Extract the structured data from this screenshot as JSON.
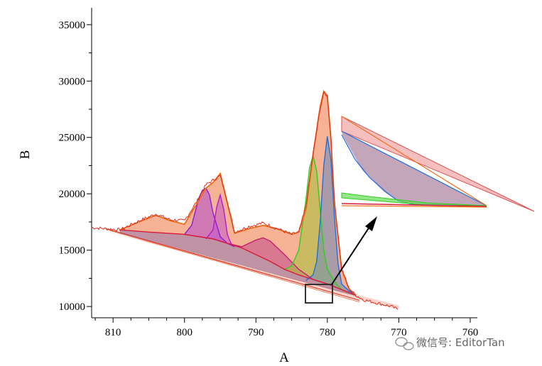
{
  "chart_data": {
    "type": "area",
    "xlabel": "A",
    "ylabel": "B",
    "xlim": [
      813,
      759
    ],
    "ylim": [
      9000,
      36500
    ],
    "x_ticks": [
      810,
      800,
      790,
      780,
      770,
      760
    ],
    "y_ticks": [
      10000,
      15000,
      20000,
      25000,
      30000,
      35000
    ],
    "colors": {
      "raw": "#e32a1a",
      "envelope": "#ef6e1a",
      "envelope_fill": "#f4a482",
      "background": "#d81b3c",
      "p1": "#1f6fe0",
      "p2": "#33cc22",
      "p3": "#c81e6e",
      "p4": "#8a1fd6",
      "p5": "#b31ecc",
      "arrow": "#000000",
      "box": "#333333"
    },
    "series": [
      {
        "key": "raw",
        "x": [
          813,
          809,
          806,
          804,
          802,
          800,
          798,
          797,
          796,
          795,
          794,
          793,
          791,
          789,
          787,
          785,
          784,
          783,
          782,
          781,
          780.5,
          780,
          779.5,
          779,
          778,
          777,
          776,
          775,
          773,
          771,
          770
        ],
        "values": [
          17000,
          16800,
          17700,
          18200,
          17700,
          17600,
          19600,
          20800,
          21200,
          21600,
          19300,
          16600,
          17100,
          17400,
          16900,
          16400,
          16600,
          18900,
          23500,
          27600,
          28900,
          28700,
          25000,
          19300,
          13400,
          11600,
          11000,
          10600,
          10300,
          10000,
          9700
        ]
      },
      {
        "key": "envelope",
        "x": [
          809,
          806,
          804,
          802,
          800,
          798,
          797,
          796,
          795,
          794,
          793,
          791,
          789,
          787,
          785,
          784,
          783,
          782,
          781,
          780.5,
          780,
          779.5,
          779,
          778,
          777,
          776
        ],
        "values": [
          16800,
          17600,
          18100,
          17600,
          17300,
          19400,
          20500,
          21000,
          21800,
          19200,
          16500,
          16900,
          17200,
          16900,
          16400,
          16600,
          18600,
          23500,
          27800,
          29100,
          28700,
          24800,
          19100,
          13300,
          11600,
          11000
        ]
      },
      {
        "key": "background",
        "x": [
          809,
          805,
          800,
          798,
          796,
          794,
          792,
          790,
          788,
          786,
          784,
          782,
          780,
          778,
          776
        ],
        "values": [
          16800,
          16600,
          16400,
          16200,
          16000,
          15600,
          15200,
          14600,
          14000,
          13300,
          12800,
          12400,
          12000,
          11500,
          11000
        ]
      },
      {
        "key": "p1",
        "x": [
          783,
          782,
          781.5,
          781,
          780.5,
          780,
          779.5,
          779,
          778.5,
          778,
          777,
          776
        ],
        "values": [
          12300,
          12800,
          14000,
          17500,
          22500,
          25100,
          23000,
          17800,
          13800,
          12000,
          11400,
          11000
        ]
      },
      {
        "key": "p2",
        "x": [
          786,
          785,
          784,
          783,
          782.5,
          782,
          781.5,
          781,
          780.5,
          780,
          779,
          778,
          776
        ],
        "values": [
          13300,
          13600,
          15000,
          19500,
          22300,
          23400,
          22000,
          18500,
          15000,
          13300,
          12200,
          11500,
          11000
        ]
      },
      {
        "key": "p3",
        "x": [
          800,
          798,
          796,
          794,
          792,
          790,
          789,
          788,
          786,
          784,
          782,
          780
        ],
        "values": [
          16400,
          16200,
          16000,
          15600,
          15300,
          15900,
          16100,
          15800,
          14600,
          13300,
          12400,
          12000
        ]
      },
      {
        "key": "p4",
        "x": [
          800,
          799,
          798.5,
          798,
          797.5,
          797,
          796.5,
          796,
          795,
          794,
          793
        ],
        "values": [
          16400,
          17200,
          18400,
          19600,
          20300,
          20500,
          19900,
          18300,
          16200,
          15600,
          15300
        ]
      },
      {
        "key": "p5",
        "x": [
          797,
          796,
          795.5,
          795,
          794.5,
          794,
          793.5,
          793
        ],
        "values": [
          16000,
          16800,
          18800,
          19900,
          18600,
          16400,
          15600,
          15300
        ]
      }
    ]
  },
  "watermark": "微信号: EditorTan"
}
